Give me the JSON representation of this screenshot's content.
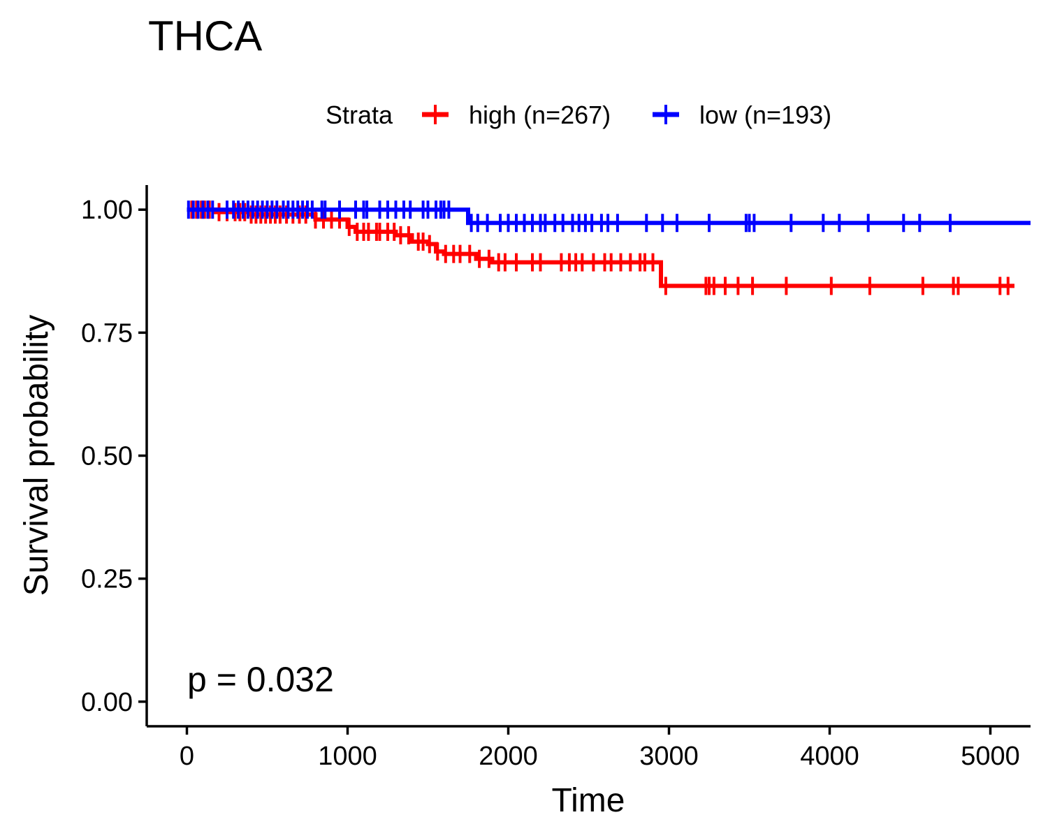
{
  "chart_data": {
    "type": "line",
    "title": "THCA",
    "xlabel": "Time",
    "ylabel": "Survival probability",
    "xlim": [
      -250,
      5250
    ],
    "ylim": [
      -0.05,
      1.05
    ],
    "x_ticks": [
      0,
      1000,
      2000,
      3000,
      4000,
      5000
    ],
    "x_tick_labels": [
      "0",
      "1000",
      "2000",
      "3000",
      "4000",
      "5000"
    ],
    "y_ticks": [
      0,
      0.25,
      0.5,
      0.75,
      1.0
    ],
    "y_tick_labels": [
      "0.00",
      "0.25",
      "0.50",
      "0.75",
      "1.00"
    ],
    "legend": {
      "title": "Strata",
      "position": "top"
    },
    "annotation": "p = 0.032",
    "grid": false,
    "series": [
      {
        "name": "high (n=267)",
        "color": "#ff0000",
        "steps": [
          [
            0,
            1.0
          ],
          [
            180,
            0.995
          ],
          [
            400,
            0.99
          ],
          [
            800,
            0.98
          ],
          [
            1000,
            0.965
          ],
          [
            1050,
            0.955
          ],
          [
            1300,
            0.948
          ],
          [
            1400,
            0.935
          ],
          [
            1500,
            0.93
          ],
          [
            1550,
            0.915
          ],
          [
            1600,
            0.91
          ],
          [
            1800,
            0.9
          ],
          [
            1900,
            0.893
          ],
          [
            2950,
            0.845
          ],
          [
            5150,
            0.845
          ]
        ],
        "censor_times": [
          30,
          60,
          90,
          110,
          140,
          200,
          250,
          300,
          330,
          360,
          400,
          430,
          460,
          490,
          520,
          550,
          580,
          620,
          660,
          700,
          740,
          800,
          850,
          900,
          950,
          1010,
          1060,
          1100,
          1130,
          1180,
          1200,
          1250,
          1290,
          1330,
          1380,
          1440,
          1470,
          1510,
          1560,
          1610,
          1660,
          1700,
          1760,
          1820,
          1880,
          1940,
          1980,
          2050,
          2150,
          2200,
          2330,
          2380,
          2420,
          2460,
          2530,
          2600,
          2640,
          2700,
          2760,
          2820,
          2850,
          2900,
          2980,
          3230,
          3250,
          3280,
          3350,
          3430,
          3520,
          3730,
          4010,
          4250,
          4580,
          4770,
          4800,
          5060,
          5110
        ]
      },
      {
        "name": "low (n=193)",
        "color": "#0000ff",
        "steps": [
          [
            0,
            1.0
          ],
          [
            1750,
            0.973
          ],
          [
            5250,
            0.973
          ]
        ],
        "censor_times": [
          10,
          40,
          70,
          100,
          130,
          160,
          250,
          290,
          320,
          350,
          380,
          410,
          440,
          470,
          500,
          530,
          560,
          600,
          630,
          660,
          690,
          720,
          750,
          780,
          840,
          860,
          950,
          1050,
          1100,
          1120,
          1200,
          1250,
          1300,
          1350,
          1390,
          1470,
          1500,
          1550,
          1580,
          1600,
          1630,
          1770,
          1810,
          1870,
          1950,
          2000,
          2050,
          2100,
          2150,
          2200,
          2230,
          2290,
          2340,
          2400,
          2440,
          2480,
          2520,
          2580,
          2620,
          2680,
          2860,
          2960,
          3050,
          3250,
          3480,
          3500,
          3530,
          3760,
          3960,
          4060,
          4240,
          4460,
          4560,
          4750
        ]
      }
    ]
  }
}
